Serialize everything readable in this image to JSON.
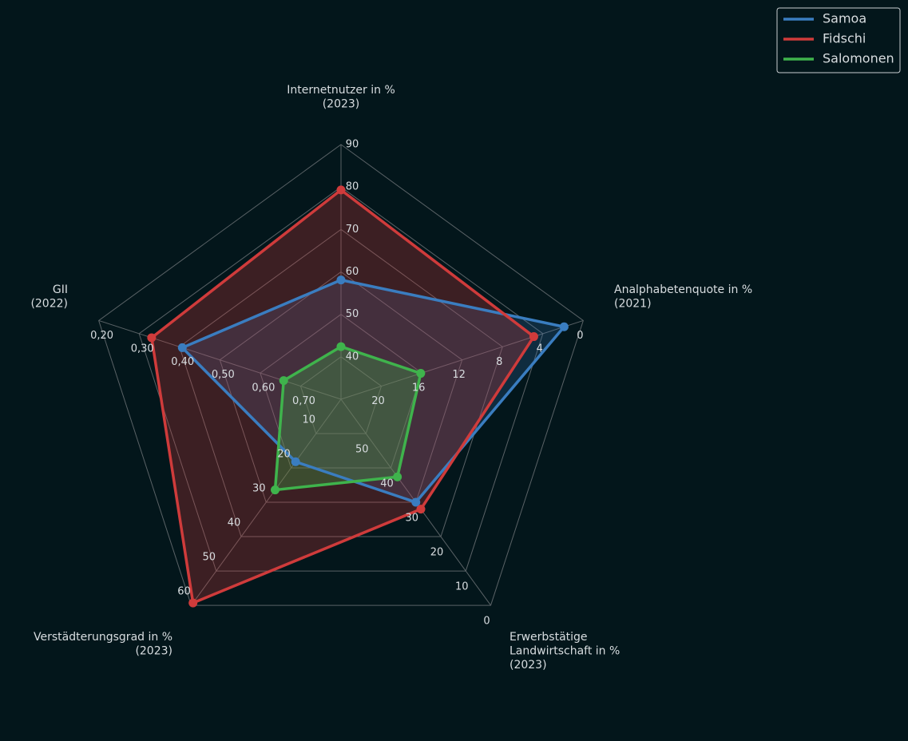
{
  "chart_data": {
    "type": "radar",
    "axes": [
      {
        "label": [
          "Internetnutzer in %",
          "(2023)"
        ],
        "rlim": [
          30,
          90
        ],
        "ticks": [
          40,
          50,
          60,
          70,
          80,
          90
        ]
      },
      {
        "label": [
          "Analphabetenquote in %",
          "(2021)"
        ],
        "rlim": [
          24,
          0
        ],
        "ticks": [
          20,
          16,
          12,
          8,
          4,
          0
        ]
      },
      {
        "label": [
          "Erwerbstätige",
          "Landwirtschaft in %",
          "(2023)"
        ],
        "rlim": [
          60,
          0
        ],
        "ticks": [
          50,
          40,
          30,
          20,
          10,
          0
        ]
      },
      {
        "label": [
          "Verstädterungsgrad in %",
          "(2023)"
        ],
        "rlim": [
          0,
          60
        ],
        "ticks": [
          10,
          20,
          30,
          40,
          50,
          60
        ]
      },
      {
        "label": [
          "GII",
          "(2022)"
        ],
        "rlim": [
          0.8,
          0.2
        ],
        "ticks": [
          {
            "value": 0.7,
            "label": "0,70"
          },
          {
            "value": 0.6,
            "label": "0,60"
          },
          {
            "value": 0.5,
            "label": "0,50"
          },
          {
            "value": 0.4,
            "label": "0,40"
          },
          {
            "value": 0.3,
            "label": "0,30"
          },
          {
            "value": 0.2,
            "label": "0,20"
          }
        ]
      }
    ],
    "series": [
      {
        "name": "Samoa",
        "color": "#3a7dc0",
        "values": [
          58.1,
          1.9,
          30,
          18.2,
          0.407
        ]
      },
      {
        "name": "Fidschi",
        "color": "#cf3b3b",
        "values": [
          79.3,
          4.9,
          28,
          59.3,
          0.331
        ]
      },
      {
        "name": "Salomonen",
        "color": "#3fb34c",
        "values": [
          42.4,
          16.1,
          37.4,
          26.4,
          0.658
        ]
      }
    ],
    "legend": "upper right"
  }
}
